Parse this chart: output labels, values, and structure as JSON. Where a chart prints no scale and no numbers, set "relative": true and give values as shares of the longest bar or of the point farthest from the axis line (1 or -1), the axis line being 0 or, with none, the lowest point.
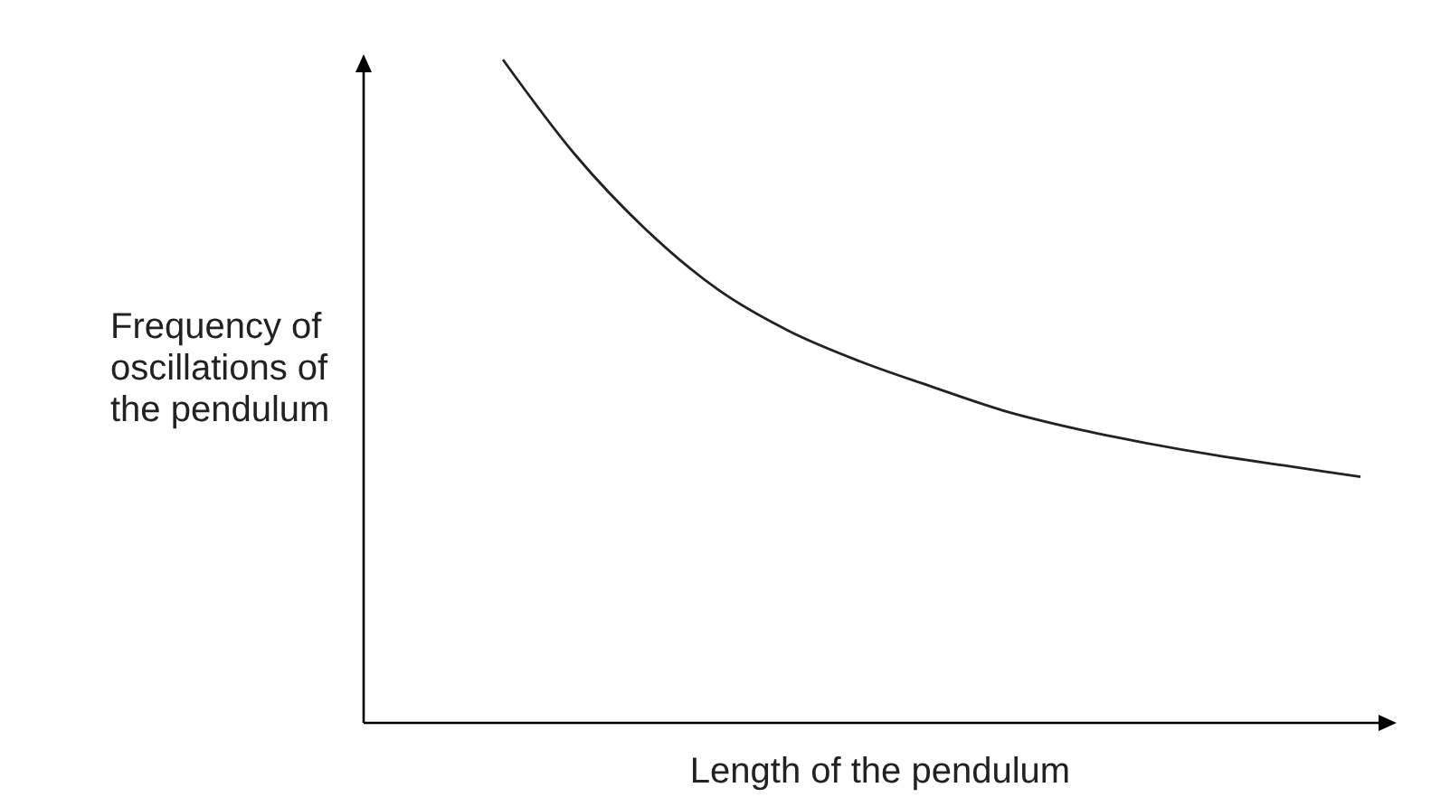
{
  "chart_data": {
    "type": "line",
    "relative": true,
    "xlabel": "Length of the pendulum",
    "ylabel": "Frequency of oscillations of the pendulum",
    "categories": [
      null,
      null,
      null,
      null,
      null,
      null,
      null,
      null,
      null,
      null,
      null,
      null,
      null
    ],
    "series": [
      {
        "color": "#222222",
        "values": [
          1,
          0.858,
          0.744,
          0.654,
          0.591,
          0.545,
          0.507,
          0.471,
          0.444,
          0.422,
          0.403,
          0.387,
          0.371
        ]
      }
    ],
    "marker": "none",
    "line_style": "solid"
  }
}
